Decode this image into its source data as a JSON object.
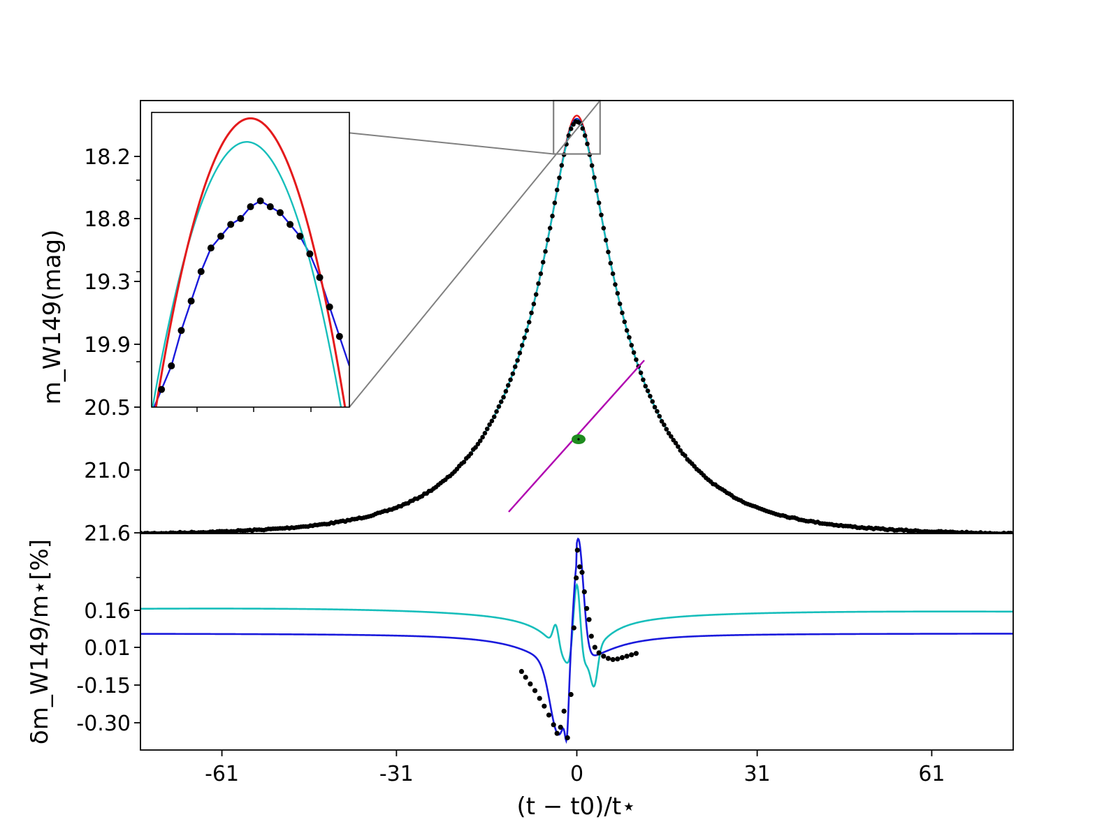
{
  "chart_data": [
    {
      "type": "line",
      "panel": "main",
      "xlabel": "(t − t0)/t⋆",
      "ylabel": "m_W149(mag)",
      "y_inverted": true,
      "xlim": [
        -75,
        75
      ],
      "ylim": [
        21.6,
        17.55
      ],
      "y_ticks": [
        "18.2",
        "18.8",
        "19.3",
        "19.9",
        "20.5",
        "21.0",
        "21.6"
      ],
      "peak_mag": 17.71,
      "baseline_mag_at_edge": 21.6,
      "series": [
        {
          "role": "data",
          "color": "#000000"
        },
        {
          "role": "model",
          "color": "#e41a1c"
        },
        {
          "role": "model",
          "color": "#1a1adc"
        },
        {
          "role": "model",
          "color": "#17bebb"
        }
      ],
      "inset": {
        "xlim": [
          -4,
          4
        ],
        "ylim": [
          18.05,
          17.55
        ],
        "data_points": [
          [
            -3.6,
            18.02
          ],
          [
            -3.2,
            17.98
          ],
          [
            -2.8,
            17.92
          ],
          [
            -2.4,
            17.87
          ],
          [
            -2.0,
            17.82
          ],
          [
            -1.6,
            17.78
          ],
          [
            -1.2,
            17.76
          ],
          [
            -0.8,
            17.74
          ],
          [
            -0.4,
            17.73
          ],
          [
            0.0,
            17.71
          ],
          [
            0.4,
            17.7
          ],
          [
            0.8,
            17.71
          ],
          [
            1.2,
            17.72
          ],
          [
            1.6,
            17.74
          ],
          [
            2.0,
            17.76
          ],
          [
            2.4,
            17.79
          ],
          [
            2.8,
            17.83
          ],
          [
            3.2,
            17.88
          ],
          [
            3.6,
            17.93
          ]
        ]
      },
      "lens_track": {
        "x": [
          -12,
          12
        ],
        "color": "#b000b0"
      },
      "source_marker": {
        "x": 0,
        "color": "#1e8c1e"
      }
    },
    {
      "type": "line",
      "panel": "residual",
      "xlabel": "(t − t0)/t⋆",
      "ylabel": "δm_W149/m⋆[%]",
      "xlim": [
        -75,
        75
      ],
      "ylim": [
        -0.42,
        0.36
      ],
      "x_ticks": [
        "-61",
        "-31",
        "0",
        "31",
        "61"
      ],
      "y_ticks": [
        "0.16",
        "0.01",
        "-0.15",
        "-0.30"
      ],
      "series": [
        {
          "role": "model",
          "color": "#1a1adc"
        },
        {
          "role": "model",
          "color": "#17bebb"
        },
        {
          "role": "data",
          "color": "#000000"
        }
      ],
      "data_points": [
        [
          -9.5,
          -0.137
        ],
        [
          -8.8,
          -0.158
        ],
        [
          -8.0,
          -0.182
        ],
        [
          -7.2,
          -0.206
        ],
        [
          -6.4,
          -0.234
        ],
        [
          -5.6,
          -0.262
        ],
        [
          -4.8,
          -0.294
        ],
        [
          -4.0,
          -0.329
        ],
        [
          -3.4,
          -0.36
        ],
        [
          -2.8,
          -0.338
        ],
        [
          -2.2,
          -0.28
        ],
        [
          -1.6,
          -0.376
        ],
        [
          -1.0,
          -0.22
        ],
        [
          -0.5,
          0.02
        ],
        [
          -0.1,
          0.2
        ],
        [
          0.1,
          0.3
        ],
        [
          0.5,
          0.24
        ],
        [
          0.9,
          0.22
        ],
        [
          1.3,
          0.15
        ],
        [
          1.7,
          0.09
        ],
        [
          2.1,
          0.05
        ],
        [
          2.5,
          -0.01
        ],
        [
          3.1,
          -0.05
        ],
        [
          3.8,
          -0.07
        ],
        [
          4.6,
          -0.082
        ],
        [
          5.4,
          -0.09
        ],
        [
          6.2,
          -0.094
        ],
        [
          7.0,
          -0.092
        ],
        [
          7.8,
          -0.087
        ],
        [
          8.6,
          -0.082
        ],
        [
          9.4,
          -0.077
        ],
        [
          10.2,
          -0.072
        ]
      ]
    }
  ]
}
